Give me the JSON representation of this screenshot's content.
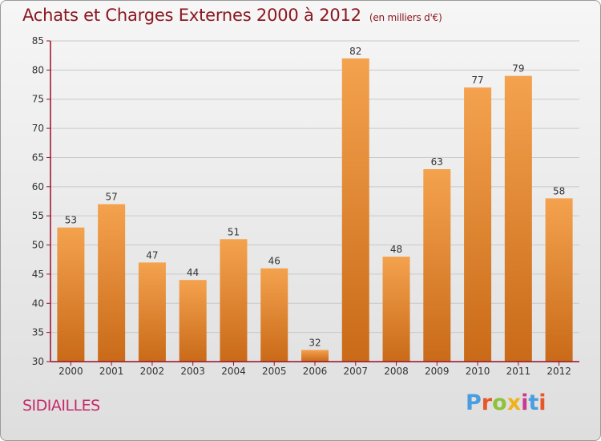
{
  "header": {
    "title": "Achats et Charges Externes 2000 à 2012",
    "unit": "(en milliers d'€)"
  },
  "footer": {
    "commune": "SIDIAILLES",
    "brand": "Proxiti"
  },
  "colors": {
    "bar_top": "#f4a24e",
    "bar_bottom": "#c96a18",
    "title": "#8a1820",
    "commune": "#c62a6a",
    "axis": "#9a0f2a"
  },
  "chart_data": {
    "type": "bar",
    "categories": [
      "2000",
      "2001",
      "2002",
      "2003",
      "2004",
      "2005",
      "2006",
      "2007",
      "2008",
      "2009",
      "2010",
      "2011",
      "2012"
    ],
    "values": [
      53,
      57,
      47,
      44,
      51,
      46,
      32,
      82,
      48,
      63,
      77,
      79,
      58
    ],
    "ylim": [
      30,
      85
    ],
    "yticks": [
      30,
      35,
      40,
      45,
      50,
      55,
      60,
      65,
      70,
      75,
      80,
      85
    ],
    "grid": true,
    "data_labels": true
  }
}
